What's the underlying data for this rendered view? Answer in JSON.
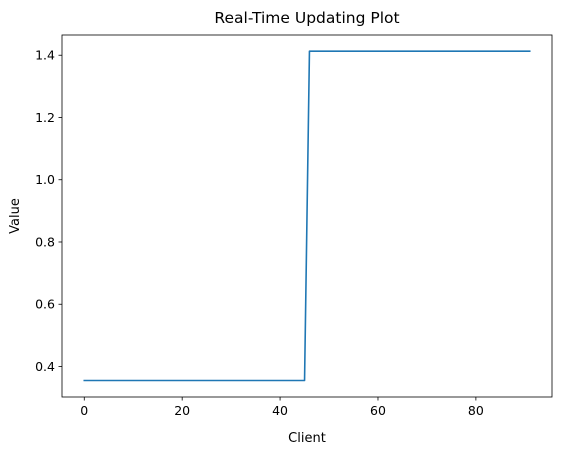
{
  "chart_data": {
    "type": "line",
    "title": "Real-Time Updating Plot",
    "xlabel": "Client",
    "ylabel": "Value",
    "xlim": [
      -4.55,
      95.55
    ],
    "ylim": [
      0.302,
      1.465
    ],
    "x_ticks": [
      0,
      20,
      40,
      60,
      80
    ],
    "y_ticks": [
      0.4,
      0.6,
      0.8,
      1.0,
      1.2,
      1.4
    ],
    "x_tick_labels": [
      "0",
      "20",
      "40",
      "60",
      "80"
    ],
    "y_tick_labels": [
      "0.4",
      "0.6",
      "0.8",
      "1.0",
      "1.2",
      "1.4"
    ],
    "grid": false,
    "legend": "none",
    "series": [
      {
        "color": "#1f77b4",
        "x": [
          0,
          45,
          46,
          91
        ],
        "y": [
          0.355,
          0.355,
          1.413,
          1.413
        ]
      }
    ]
  }
}
